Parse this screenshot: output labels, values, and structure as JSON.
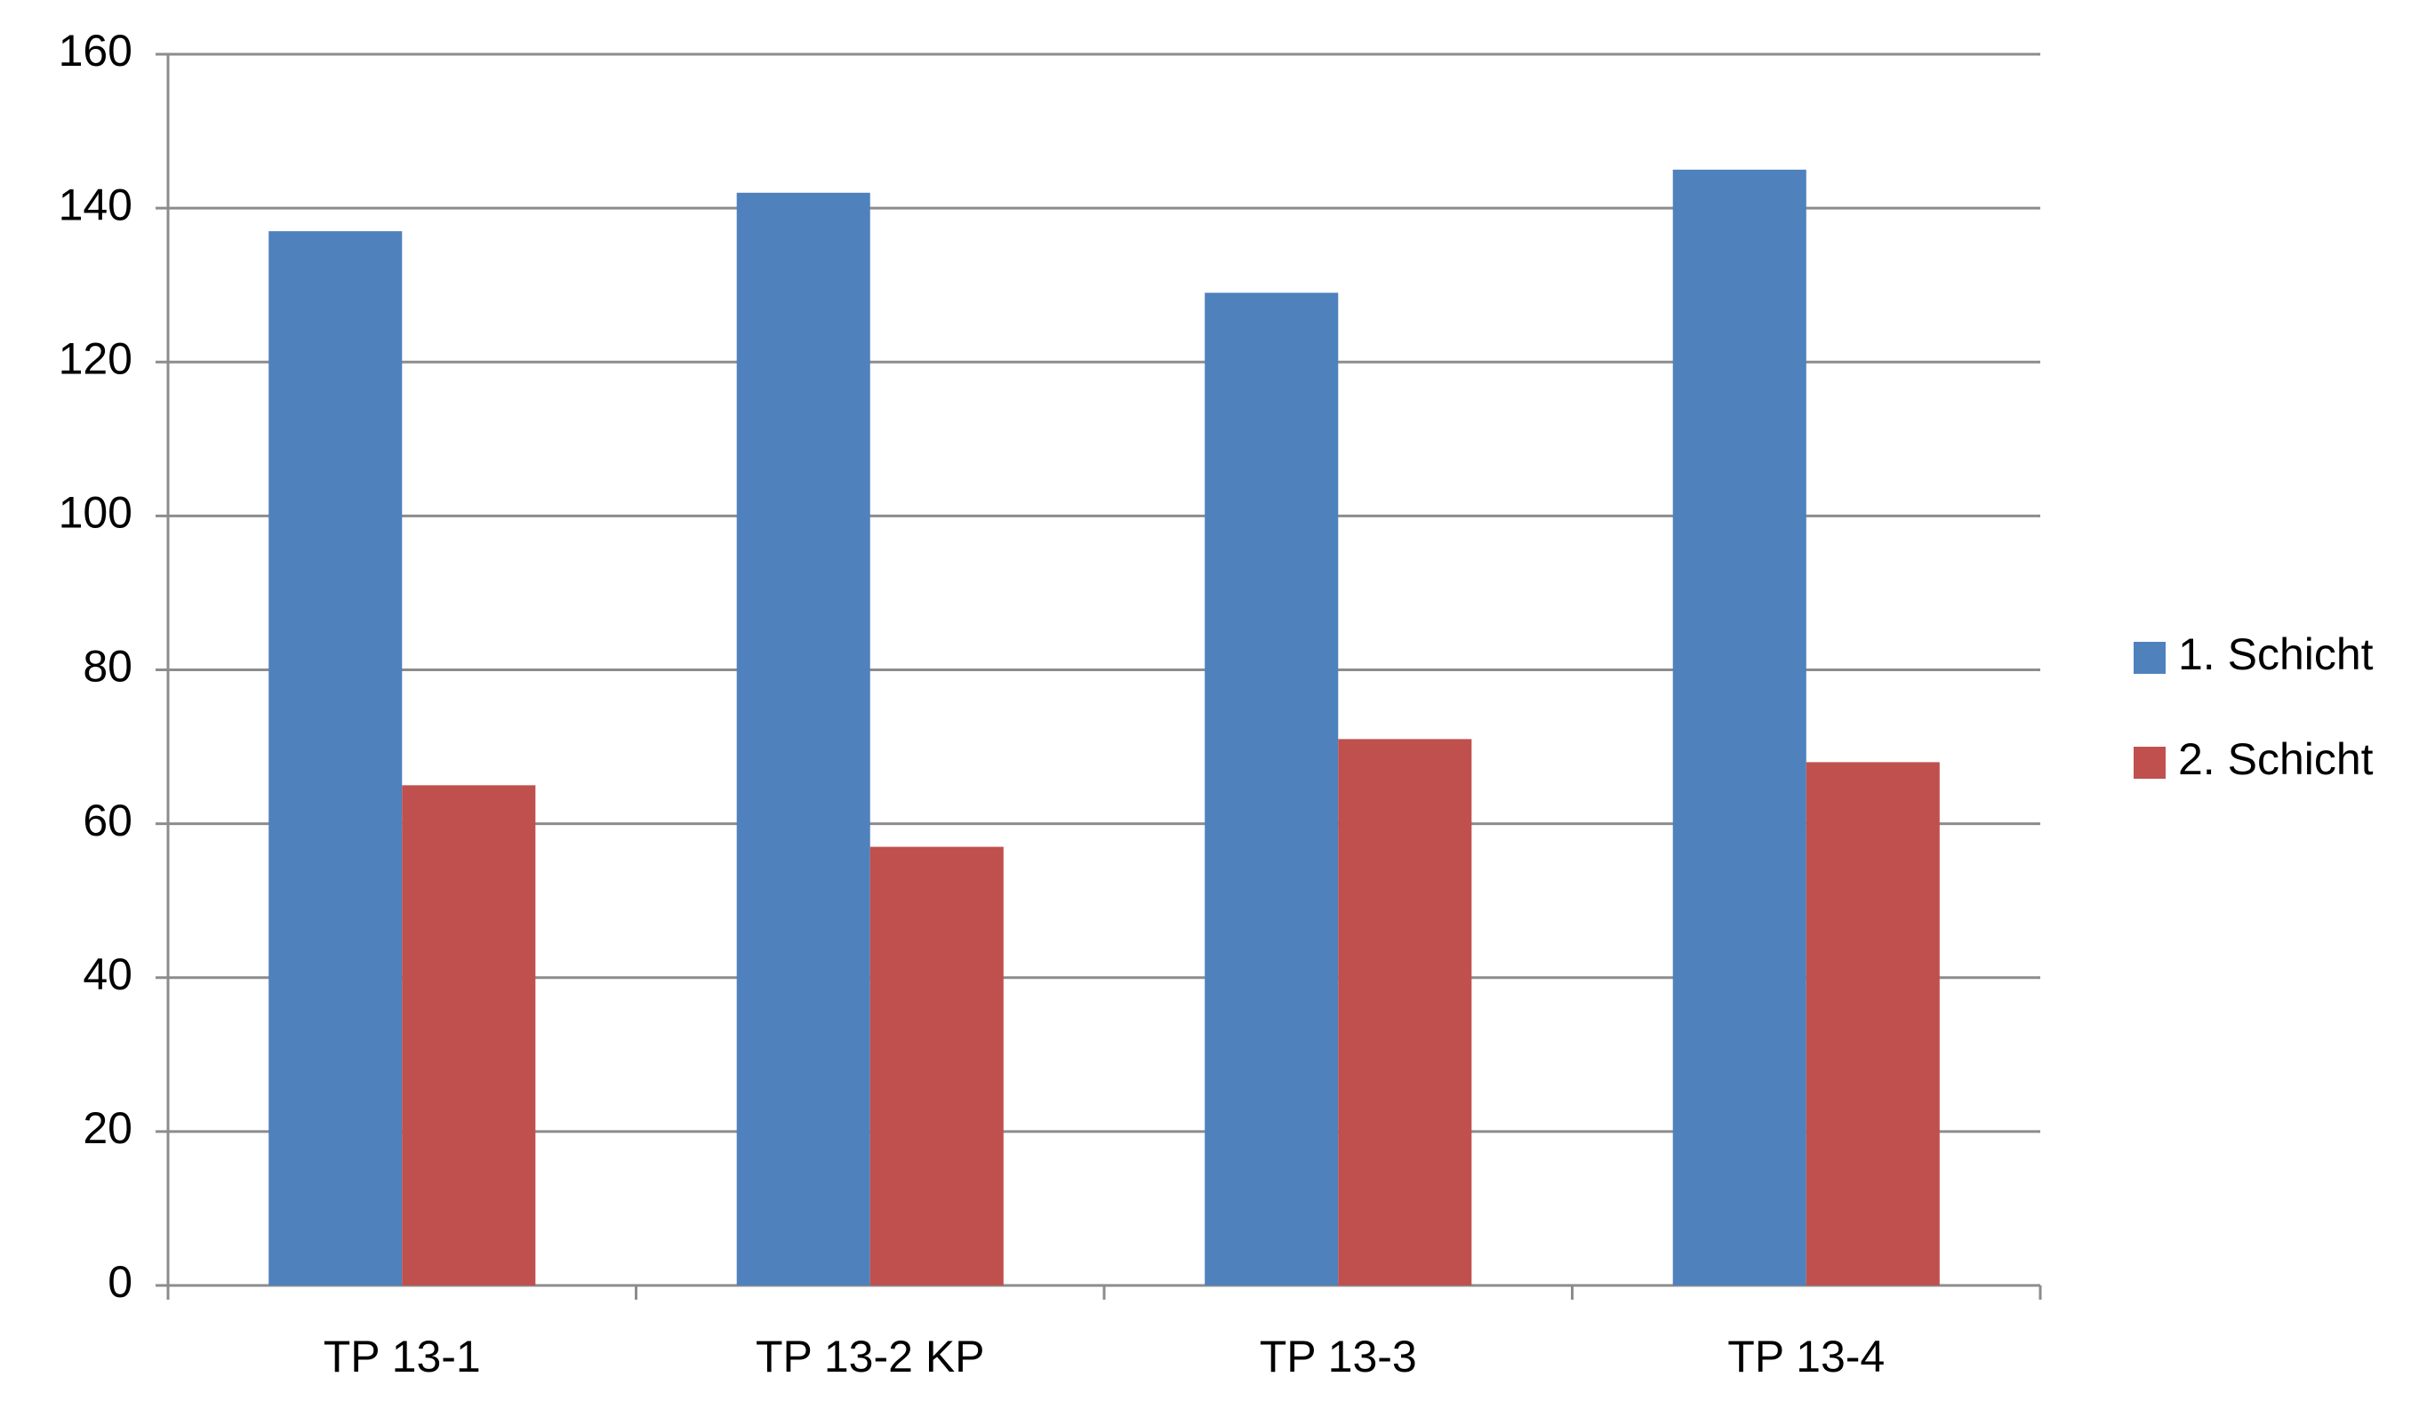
{
  "chart_data": {
    "type": "bar",
    "categories": [
      "TP 13-1",
      "TP 13-2 KP",
      "TP 13-3",
      "TP 13-4"
    ],
    "series": [
      {
        "name": "1. Schicht",
        "color": "#4f81bd",
        "values": [
          137,
          142,
          129,
          145
        ]
      },
      {
        "name": "2. Schicht",
        "color": "#c0504d",
        "values": [
          65,
          57,
          71,
          68
        ]
      }
    ],
    "ylim": [
      0,
      160
    ],
    "yticks": [
      0,
      20,
      40,
      60,
      80,
      100,
      120,
      140,
      160
    ],
    "grid": true,
    "legend": "right"
  }
}
